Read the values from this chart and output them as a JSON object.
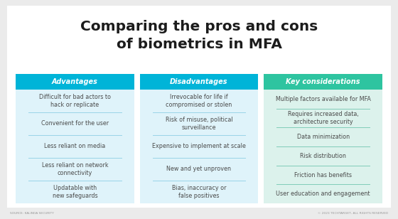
{
  "title_line1": "Comparing the pros and cons",
  "title_line2": "of biometrics in MFA",
  "background_color": "#ebebeb",
  "card_bg_color": "#ffffff",
  "col1_header_color": "#00b4d8",
  "col2_header_color": "#00b4d8",
  "col3_header_color": "#2ec4a0",
  "col1_body_color": "#dff3fa",
  "col2_body_color": "#dff3fa",
  "col3_body_color": "#dcf2ec",
  "header_text_color": "#ffffff",
  "body_text_color": "#4a4a4a",
  "divider_color": "#99d4e8",
  "col3_divider_color": "#80ccb8",
  "col1_header": "Advantages",
  "col2_header": "Disadvantages",
  "col3_header": "Key considerations",
  "col1_items": [
    "Difficult for bad actors to\nhack or replicate",
    "Convenient for the user",
    "Less reliant on media",
    "Less reliant on network\nconnectivity",
    "Updatable with\nnew safeguards"
  ],
  "col2_items": [
    "Irrevocable for life if\ncompromised or stolen",
    "Risk of misuse, political\nsurveillance",
    "Expensive to implement at scale",
    "New and yet unproven",
    "Bias, inaccuracy or\nfalse positives"
  ],
  "col3_items": [
    "Multiple factors available for MFA",
    "Requires increased data,\narchitecture security",
    "Data minimization",
    "Risk distribution",
    "Friction has benefits",
    "User education and engagement"
  ],
  "footer_left": "SOURCE: KALINDA SECURITY",
  "footer_right": "© 2023 TECHTARGET, ALL RIGHTS RESERVED"
}
